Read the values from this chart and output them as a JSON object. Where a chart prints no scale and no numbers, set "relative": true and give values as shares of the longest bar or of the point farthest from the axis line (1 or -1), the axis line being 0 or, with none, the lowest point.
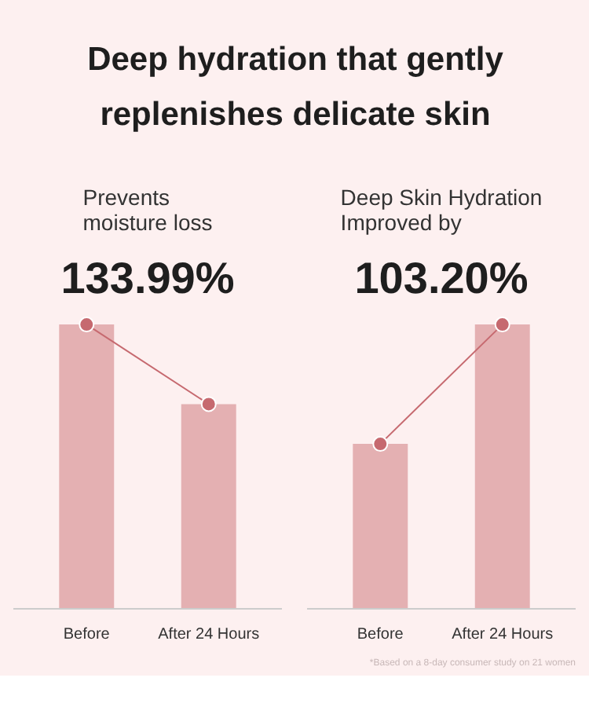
{
  "chart_data": [
    {
      "type": "other",
      "title": "Deep hydration that gently replenishes delicate skin"
    },
    {
      "type": "bar",
      "title": "Prevents\nmoisture loss",
      "subtitle": "133.99%",
      "categories": [
        "Before",
        "After 24 Hours"
      ],
      "relative": true,
      "grid": false,
      "series": [
        {
          "type": "bar",
          "color": "#e4b0b2",
          "values": [
            1,
            0.72
          ]
        },
        {
          "type": "line",
          "color": "#c6696f",
          "marker": "circle",
          "values": [
            1,
            0.72
          ]
        }
      ]
    },
    {
      "type": "bar",
      "title": "Deep Skin Hydration\nImproved by",
      "subtitle": "103.20%",
      "categories": [
        "Before",
        "After 24 Hours"
      ],
      "relative": true,
      "grid": false,
      "series": [
        {
          "type": "bar",
          "color": "#e4b0b2",
          "values": [
            0.58,
            1
          ]
        },
        {
          "type": "line",
          "color": "#c6696f",
          "marker": "circle",
          "values": [
            0.58,
            1
          ]
        }
      ],
      "annotations": [
        "*Based on a 8-day consumer study on 21 women"
      ]
    }
  ]
}
